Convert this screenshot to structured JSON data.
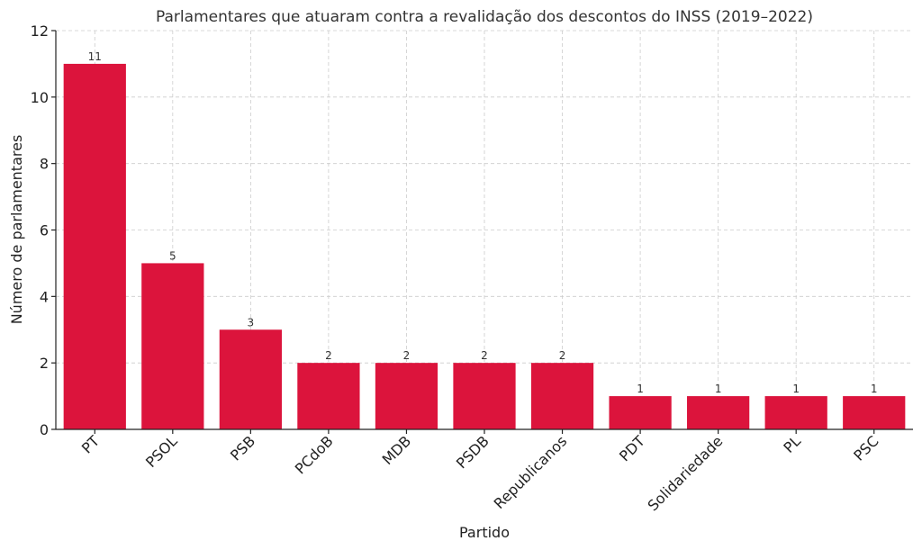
{
  "chart_data": {
    "type": "bar",
    "title": "Parlamentares que atuaram contra a revalidação dos descontos do INSS (2019–2022)",
    "xlabel": "Partido",
    "ylabel": "Número de parlamentares",
    "categories": [
      "PT",
      "PSOL",
      "PSB",
      "PCdoB",
      "MDB",
      "PSDB",
      "Republicanos",
      "PDT",
      "Solidariedade",
      "PL",
      "PSC"
    ],
    "values": [
      11,
      5,
      3,
      2,
      2,
      2,
      2,
      1,
      1,
      1,
      1
    ],
    "ylim": [
      0,
      12
    ],
    "yticks": [
      0,
      2,
      4,
      6,
      8,
      10,
      12
    ],
    "grid": true,
    "bar_color": "#dc143c"
  }
}
